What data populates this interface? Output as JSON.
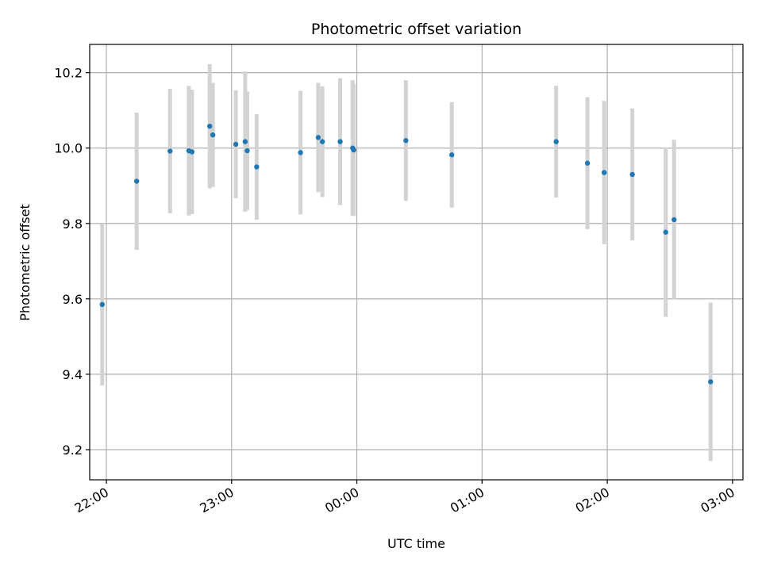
{
  "chart_data": {
    "type": "scatter",
    "title": "Photometric offset variation",
    "xlabel": "UTC time",
    "ylabel": "Photometric offset",
    "x_unit": "minutes_after_22:00",
    "xlim": [
      -8,
      305
    ],
    "ylim": [
      9.12,
      10.275
    ],
    "grid": true,
    "x_ticks": [
      {
        "value": 0,
        "label": "22:00"
      },
      {
        "value": 60,
        "label": "23:00"
      },
      {
        "value": 120,
        "label": "00:00"
      },
      {
        "value": 180,
        "label": "01:00"
      },
      {
        "value": 240,
        "label": "02:00"
      },
      {
        "value": 300,
        "label": "03:00"
      }
    ],
    "y_ticks": [
      {
        "value": 9.2,
        "label": "9.2"
      },
      {
        "value": 9.4,
        "label": "9.4"
      },
      {
        "value": 9.6,
        "label": "9.6"
      },
      {
        "value": 9.8,
        "label": "9.8"
      },
      {
        "value": 10.0,
        "label": "10.0"
      },
      {
        "value": 10.2,
        "label": "10.2"
      }
    ],
    "colors": {
      "point": "#1f77b4",
      "errorbar": "#d3d3d3",
      "grid": "#b0b0b0"
    },
    "series": [
      {
        "points": [
          {
            "x": -2,
            "y": 9.585,
            "err": 0.215
          },
          {
            "x": 14.5,
            "y": 9.912,
            "err": 0.182
          },
          {
            "x": 30.5,
            "y": 9.992,
            "err": 0.165
          },
          {
            "x": 39.5,
            "y": 9.993,
            "err": 0.172
          },
          {
            "x": 41,
            "y": 9.99,
            "err": 0.165
          },
          {
            "x": 49.5,
            "y": 10.058,
            "err": 0.165
          },
          {
            "x": 51,
            "y": 10.035,
            "err": 0.138
          },
          {
            "x": 62,
            "y": 10.01,
            "err": 0.143
          },
          {
            "x": 66.5,
            "y": 10.017,
            "err": 0.186
          },
          {
            "x": 67.5,
            "y": 9.993,
            "err": 0.157
          },
          {
            "x": 72,
            "y": 9.95,
            "err": 0.14
          },
          {
            "x": 93,
            "y": 9.988,
            "err": 0.164
          },
          {
            "x": 101.5,
            "y": 10.028,
            "err": 0.145
          },
          {
            "x": 103.5,
            "y": 10.017,
            "err": 0.147
          },
          {
            "x": 112,
            "y": 10.017,
            "err": 0.168
          },
          {
            "x": 118,
            "y": 10.0,
            "err": 0.18
          },
          {
            "x": 118.5,
            "y": 9.995,
            "err": 0.175
          },
          {
            "x": 143.5,
            "y": 10.02,
            "err": 0.16
          },
          {
            "x": 165.5,
            "y": 9.982,
            "err": 0.14
          },
          {
            "x": 215.5,
            "y": 10.017,
            "err": 0.148
          },
          {
            "x": 230.5,
            "y": 9.96,
            "err": 0.175
          },
          {
            "x": 238.5,
            "y": 9.935,
            "err": 0.19
          },
          {
            "x": 252,
            "y": 9.93,
            "err": 0.175
          },
          {
            "x": 268,
            "y": 9.777,
            "err": 0.225
          },
          {
            "x": 272,
            "y": 9.81,
            "err": 0.212
          },
          {
            "x": 289.5,
            "y": 9.38,
            "err": 0.21
          }
        ]
      }
    ]
  }
}
